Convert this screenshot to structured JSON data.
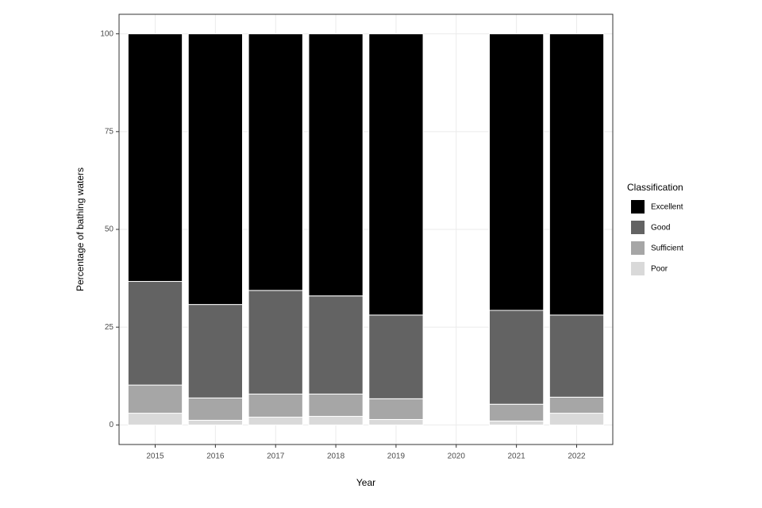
{
  "chart_data": {
    "type": "stacked_bar",
    "x_label": "Year",
    "y_label": "Percentage of bathing waters",
    "legend_title": "Classification",
    "legend_position": "right",
    "categories": [
      "2015",
      "2016",
      "2017",
      "2018",
      "2019",
      "2020",
      "2021",
      "2022"
    ],
    "series": [
      {
        "name": "Excellent",
        "color": "#000000",
        "values": [
          63.3,
          69.2,
          65.6,
          67.0,
          71.9,
          null,
          70.7,
          71.9
        ]
      },
      {
        "name": "Good",
        "color": "#636363",
        "values": [
          26.5,
          23.9,
          26.5,
          25.1,
          21.4,
          null,
          24.0,
          21.0
        ]
      },
      {
        "name": "Sufficient",
        "color": "#a6a6a6",
        "values": [
          7.2,
          5.7,
          5.9,
          5.7,
          5.3,
          null,
          4.3,
          4.1
        ]
      },
      {
        "name": "Poor",
        "color": "#d9d9d9",
        "values": [
          3.0,
          1.2,
          2.0,
          2.2,
          1.4,
          null,
          1.0,
          3.0
        ]
      }
    ],
    "ylim": [
      -5,
      105
    ],
    "yticks": [
      0,
      25,
      50,
      75,
      100
    ],
    "grid": true
  }
}
